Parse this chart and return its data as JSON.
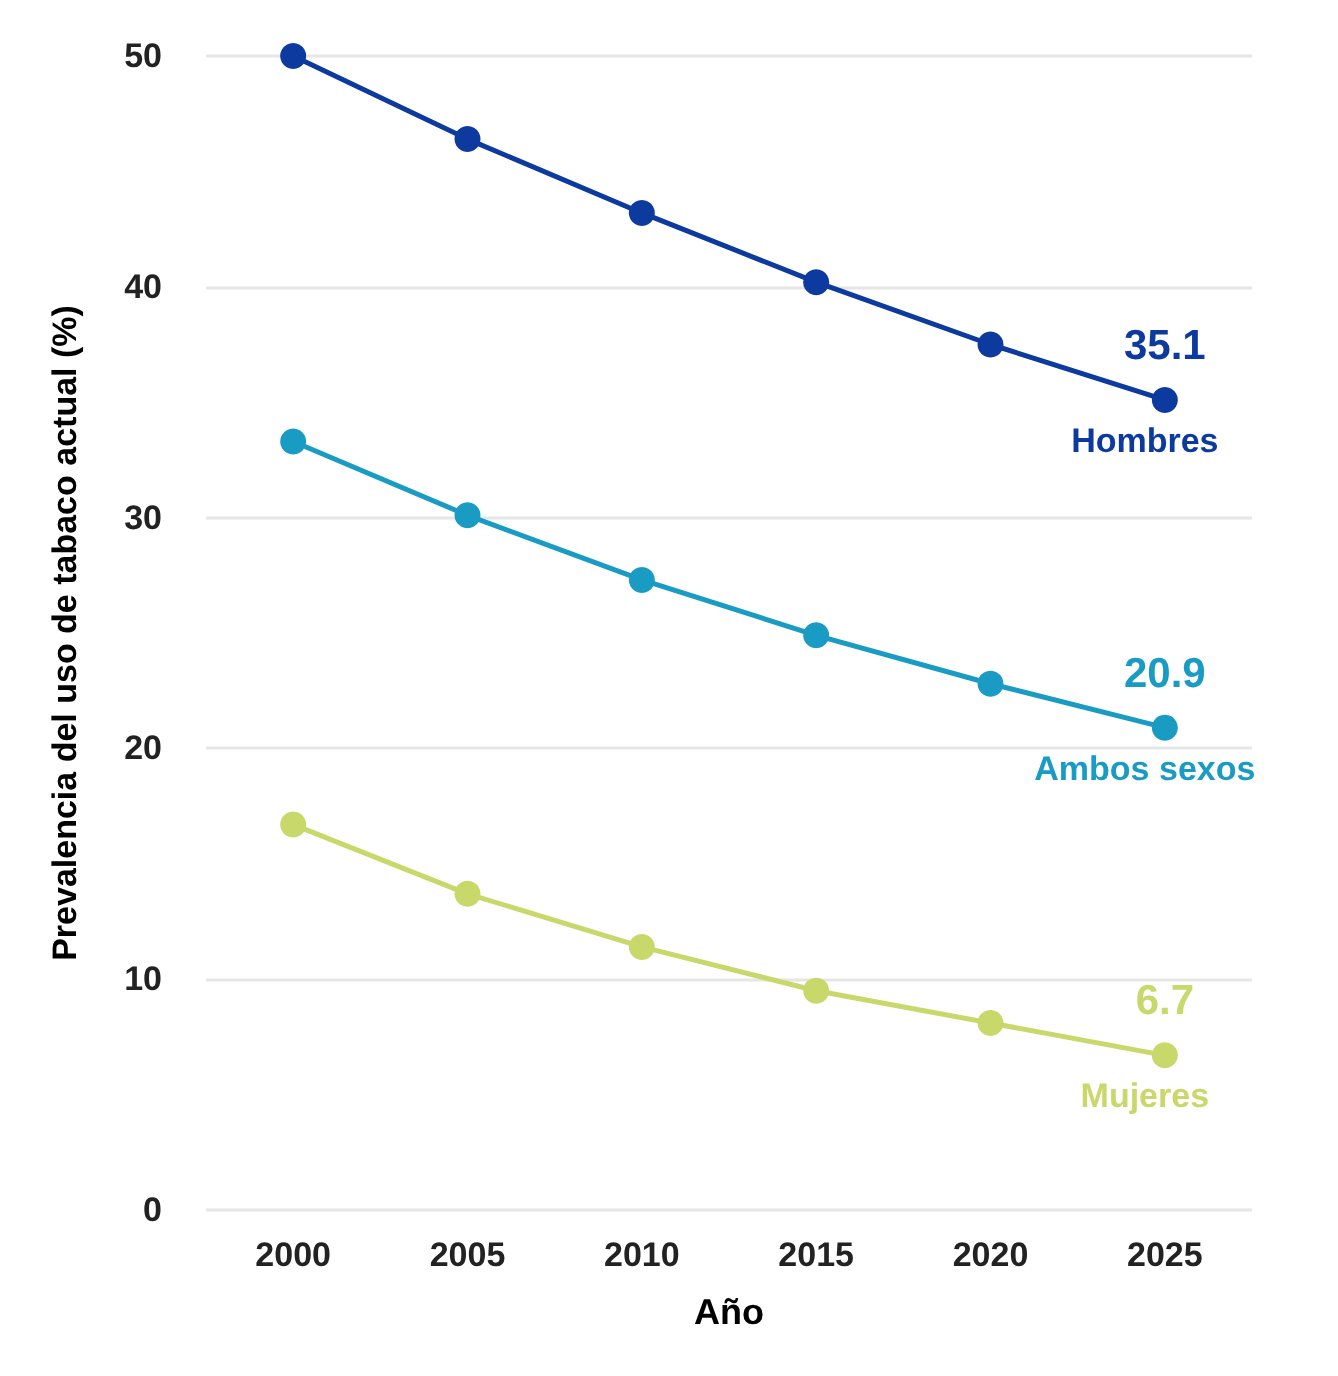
{
  "chart_data": {
    "type": "line",
    "xlabel": "Año",
    "ylabel": "Prevalencia del uso de tabaco actual (%)",
    "categories": [
      "2000",
      "2005",
      "2010",
      "2015",
      "2020",
      "2025"
    ],
    "series": [
      {
        "name": "Hombres",
        "color": "#0d3a9e",
        "values": [
          50,
          46.4,
          43.2,
          40.2,
          37.5,
          35.1
        ],
        "value_labels": [
          null,
          null,
          null,
          null,
          null,
          "35.1"
        ]
      },
      {
        "name": "Ambos sexos",
        "color": "#1a9bc4",
        "values": [
          33.3,
          30.1,
          27.3,
          24.9,
          22.8,
          20.9
        ],
        "value_labels": [
          null,
          null,
          null,
          null,
          null,
          "20.9"
        ]
      },
      {
        "name": "Mujeres",
        "color": "#c9d86a",
        "values": [
          16.7,
          13.7,
          11.4,
          9.5,
          8.1,
          6.7
        ],
        "value_labels": [
          null,
          null,
          null,
          null,
          null,
          "6.7"
        ]
      }
    ],
    "ylim": [
      0,
      50
    ],
    "yticks": [
      0,
      10,
      20,
      30,
      40,
      50
    ],
    "grid": "y",
    "legend": false,
    "marker": "circle",
    "line_style": "solid"
  }
}
